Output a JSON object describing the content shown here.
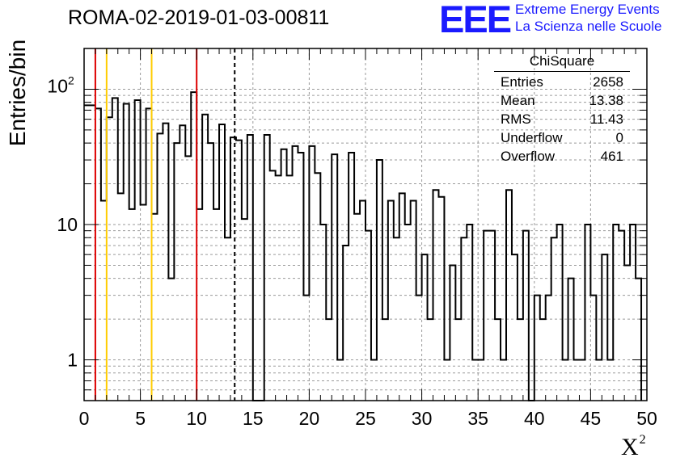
{
  "page": {
    "title": "ROMA-02-2019-01-03-00811"
  },
  "logo": {
    "mark": "EEE",
    "line1": "Extreme Energy Events",
    "line2": "La Scienza nelle Scuole",
    "color": "#1a1aff"
  },
  "stats_box": {
    "title": "ChiSquare",
    "rows": [
      {
        "label": "Entries",
        "value": "2658"
      },
      {
        "label": "Mean",
        "value": "13.38"
      },
      {
        "label": "RMS",
        "value": "11.43"
      },
      {
        "label": "Underflow",
        "value": "0"
      },
      {
        "label": "Overflow",
        "value": "461"
      }
    ]
  },
  "chart_data": {
    "type": "histogram",
    "title": "ROMA-02-2019-01-03-00811",
    "xlabel": "X",
    "xlabel_superscript": "2",
    "ylabel": "Entries/bin",
    "xlim": [
      0,
      50
    ],
    "ylim": [
      0.5,
      200
    ],
    "yscale": "log",
    "bin_width": 0.5,
    "x_ticks": [
      "0",
      "5",
      "10",
      "15",
      "20",
      "25",
      "30",
      "35",
      "40",
      "45",
      "50"
    ],
    "y_ticks": [
      {
        "value": 1,
        "label": "1"
      },
      {
        "value": 10,
        "label": "10"
      },
      {
        "value": 100,
        "label": "10",
        "exponent": "2"
      }
    ],
    "grid": true,
    "values": [
      76,
      76,
      72,
      15,
      62,
      86,
      17,
      78,
      13,
      83,
      14,
      72,
      12,
      47,
      56,
      4,
      40,
      54,
      32,
      95,
      13,
      65,
      40,
      13,
      55,
      8,
      44,
      42,
      11,
      46,
      0,
      0,
      46,
      25,
      23,
      36,
      23,
      38,
      34,
      3,
      38,
      24,
      10,
      2,
      33,
      1,
      7,
      34,
      12,
      15,
      9,
      1,
      30,
      2,
      15,
      8,
      17,
      10,
      15,
      3,
      6,
      2,
      18,
      16,
      1,
      5,
      2,
      8,
      10,
      1,
      1,
      9,
      9,
      2,
      1,
      18,
      6,
      2,
      9,
      0,
      3,
      2,
      3,
      8,
      10,
      1,
      4,
      1,
      1,
      10,
      3,
      1,
      6,
      1,
      10,
      9,
      5,
      10,
      4
    ],
    "vertical_lines": [
      {
        "x": 1,
        "color": "#dd0000",
        "style": "solid"
      },
      {
        "x": 2,
        "color": "#ffcc00",
        "style": "solid"
      },
      {
        "x": 6,
        "color": "#ffcc00",
        "style": "solid"
      },
      {
        "x": 10,
        "color": "#dd0000",
        "style": "solid"
      },
      {
        "x": 13.38,
        "color": "#000000",
        "style": "dashed"
      }
    ]
  }
}
